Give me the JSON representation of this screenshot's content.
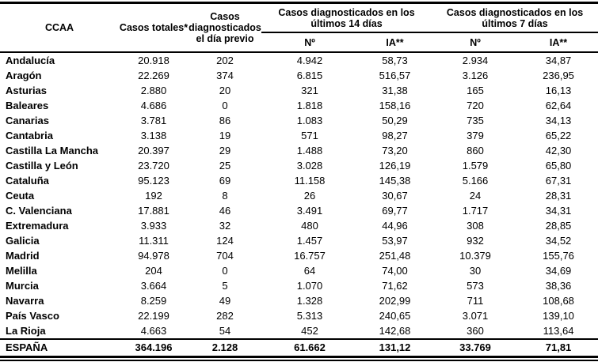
{
  "header": {
    "ccaa": "CCAA",
    "casos_totales": "Casos totales*",
    "dia_previo": "Casos diagnosticados el día previo",
    "grupo_14dias": "Casos diagnosticados en los últimos 14 días",
    "grupo_7dias": "Casos diagnosticados en los últimos 7 días",
    "num_14": "Nº",
    "ia_14": "IA**",
    "num_7": "Nº",
    "ia_7": "IA**"
  },
  "rows": [
    {
      "ccaa": "Andalucía",
      "totales": "20.918",
      "previo": "202",
      "n14": "4.942",
      "ia14": "58,73",
      "n7": "2.934",
      "ia7": "34,87"
    },
    {
      "ccaa": "Aragón",
      "totales": "22.269",
      "previo": "374",
      "n14": "6.815",
      "ia14": "516,57",
      "n7": "3.126",
      "ia7": "236,95"
    },
    {
      "ccaa": "Asturias",
      "totales": "2.880",
      "previo": "20",
      "n14": "321",
      "ia14": "31,38",
      "n7": "165",
      "ia7": "16,13"
    },
    {
      "ccaa": "Baleares",
      "totales": "4.686",
      "previo": "0",
      "n14": "1.818",
      "ia14": "158,16",
      "n7": "720",
      "ia7": "62,64"
    },
    {
      "ccaa": "Canarias",
      "totales": "3.781",
      "previo": "86",
      "n14": "1.083",
      "ia14": "50,29",
      "n7": "735",
      "ia7": "34,13"
    },
    {
      "ccaa": "Cantabria",
      "totales": "3.138",
      "previo": "19",
      "n14": "571",
      "ia14": "98,27",
      "n7": "379",
      "ia7": "65,22"
    },
    {
      "ccaa": "Castilla La Mancha",
      "totales": "20.397",
      "previo": "29",
      "n14": "1.488",
      "ia14": "73,20",
      "n7": "860",
      "ia7": "42,30"
    },
    {
      "ccaa": "Castilla y León",
      "totales": "23.720",
      "previo": "25",
      "n14": "3.028",
      "ia14": "126,19",
      "n7": "1.579",
      "ia7": "65,80"
    },
    {
      "ccaa": "Cataluña",
      "totales": "95.123",
      "previo": "69",
      "n14": "11.158",
      "ia14": "145,38",
      "n7": "5.166",
      "ia7": "67,31"
    },
    {
      "ccaa": "Ceuta",
      "totales": "192",
      "previo": "8",
      "n14": "26",
      "ia14": "30,67",
      "n7": "24",
      "ia7": "28,31"
    },
    {
      "ccaa": "C. Valenciana",
      "totales": "17.881",
      "previo": "46",
      "n14": "3.491",
      "ia14": "69,77",
      "n7": "1.717",
      "ia7": "34,31"
    },
    {
      "ccaa": "Extremadura",
      "totales": "3.933",
      "previo": "32",
      "n14": "480",
      "ia14": "44,96",
      "n7": "308",
      "ia7": "28,85"
    },
    {
      "ccaa": "Galicia",
      "totales": "11.311",
      "previo": "124",
      "n14": "1.457",
      "ia14": "53,97",
      "n7": "932",
      "ia7": "34,52"
    },
    {
      "ccaa": "Madrid",
      "totales": "94.978",
      "previo": "704",
      "n14": "16.757",
      "ia14": "251,48",
      "n7": "10.379",
      "ia7": "155,76"
    },
    {
      "ccaa": "Melilla",
      "totales": "204",
      "previo": "0",
      "n14": "64",
      "ia14": "74,00",
      "n7": "30",
      "ia7": "34,69"
    },
    {
      "ccaa": "Murcia",
      "totales": "3.664",
      "previo": "5",
      "n14": "1.070",
      "ia14": "71,62",
      "n7": "573",
      "ia7": "38,36"
    },
    {
      "ccaa": "Navarra",
      "totales": "8.259",
      "previo": "49",
      "n14": "1.328",
      "ia14": "202,99",
      "n7": "711",
      "ia7": "108,68"
    },
    {
      "ccaa": "País Vasco",
      "totales": "22.199",
      "previo": "282",
      "n14": "5.313",
      "ia14": "240,65",
      "n7": "3.071",
      "ia7": "139,10"
    },
    {
      "ccaa": "La Rioja",
      "totales": "4.663",
      "previo": "54",
      "n14": "452",
      "ia14": "142,68",
      "n7": "360",
      "ia7": "113,64"
    }
  ],
  "total_row": {
    "ccaa": "ESPAÑA",
    "totales": "364.196",
    "previo": "2.128",
    "n14": "61.662",
    "ia14": "131,12",
    "n7": "33.769",
    "ia7": "71,81"
  }
}
